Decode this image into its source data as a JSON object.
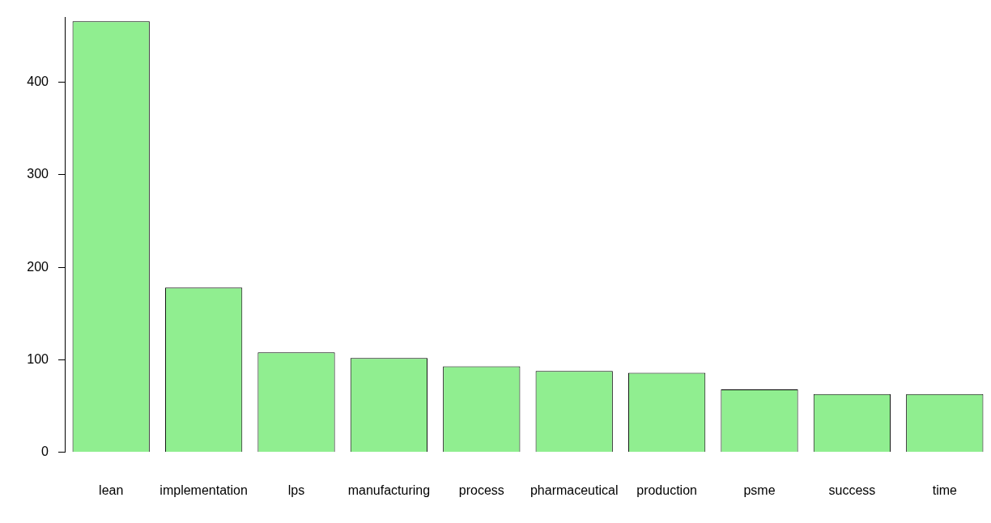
{
  "chart_data": {
    "type": "bar",
    "categories": [
      "lean",
      "implementation",
      "lps",
      "manufacturing",
      "process",
      "pharmaceutical",
      "production",
      "psme",
      "success",
      "time"
    ],
    "values": [
      466,
      178,
      108,
      102,
      93,
      88,
      86,
      68,
      63,
      63
    ],
    "color": "#90ee90",
    "ylim": [
      0,
      470
    ],
    "yticks": [
      0,
      100,
      200,
      300,
      400
    ],
    "grid": false,
    "legend": false
  }
}
